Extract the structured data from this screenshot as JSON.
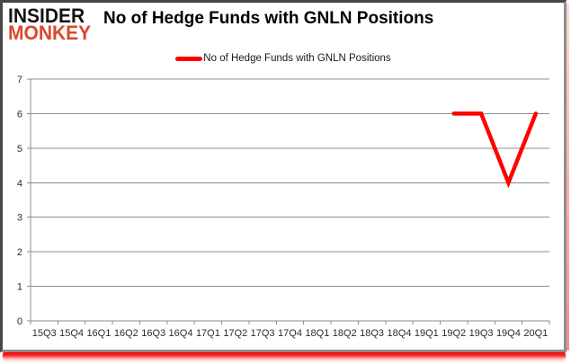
{
  "header": {
    "logo_line1": "INSIDER",
    "logo_line2": "MONKEY",
    "title": "No of Hedge Funds with GNLN Positions"
  },
  "legend": {
    "label": "No of Hedge Funds with GNLN Positions"
  },
  "colors": {
    "series_red": "#ff0000",
    "grid_gray": "#8c8c8c",
    "logo_red": "#d9492c",
    "accent_bar_red": "#ed0000"
  },
  "chart_data": {
    "type": "line",
    "title": "No of Hedge Funds with GNLN Positions",
    "categories": [
      "15Q3",
      "15Q4",
      "16Q1",
      "16Q2",
      "16Q3",
      "16Q4",
      "17Q1",
      "17Q2",
      "17Q3",
      "17Q4",
      "18Q1",
      "18Q2",
      "18Q3",
      "18Q4",
      "19Q1",
      "19Q2",
      "19Q3",
      "19Q4",
      "20Q1"
    ],
    "series": [
      {
        "name": "No of Hedge Funds with GNLN Positions",
        "color": "#ff0000",
        "values": [
          null,
          null,
          null,
          null,
          null,
          null,
          null,
          null,
          null,
          null,
          null,
          null,
          null,
          null,
          null,
          6,
          6,
          4,
          6
        ]
      }
    ],
    "ylim": [
      0,
      7
    ],
    "yticks": [
      0,
      1,
      2,
      3,
      4,
      5,
      6,
      7
    ],
    "grid": true,
    "legend_position": "top-center"
  }
}
